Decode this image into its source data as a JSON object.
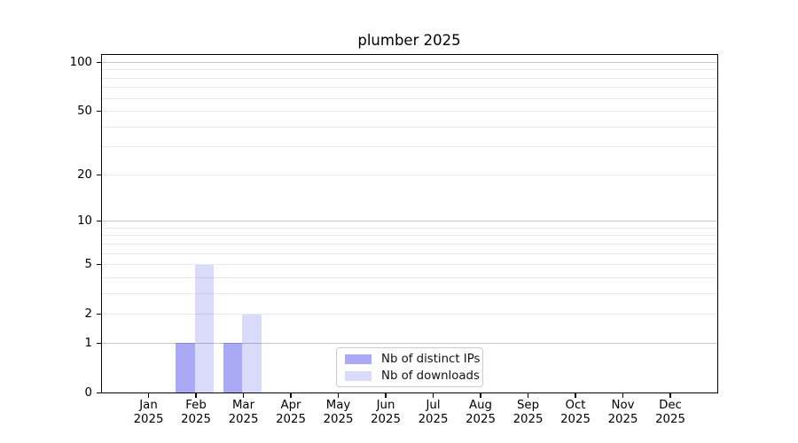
{
  "chart_data": {
    "type": "bar",
    "title": "plumber 2025",
    "categories": [
      "Jan 2025",
      "Feb 2025",
      "Mar 2025",
      "Apr 2025",
      "May 2025",
      "Jun 2025",
      "Jul 2025",
      "Aug 2025",
      "Sep 2025",
      "Oct 2025",
      "Nov 2025",
      "Dec 2025"
    ],
    "series": [
      {
        "name": "Nb of distinct IPs",
        "color": "rgba(10,10,230,0.35)",
        "values": [
          0,
          1,
          1,
          0,
          0,
          0,
          0,
          0,
          0,
          0,
          0,
          0
        ]
      },
      {
        "name": "Nb of downloads",
        "color": "rgba(10,10,230,0.15)",
        "values": [
          0,
          5,
          2,
          0,
          0,
          0,
          0,
          0,
          0,
          0,
          0,
          0
        ]
      }
    ],
    "xlabel": "",
    "ylabel": "",
    "yscale": "log1p",
    "ylim": [
      0,
      113
    ],
    "yticks_labeled": [
      0,
      1,
      2,
      5,
      10,
      20,
      50,
      100
    ],
    "yticks_decade": [
      1,
      10,
      100
    ],
    "yticks_minor": [
      2,
      3,
      4,
      5,
      6,
      7,
      8,
      9,
      20,
      30,
      40,
      50,
      60,
      70,
      80,
      90
    ],
    "grid": true,
    "legend_position": "lower center"
  },
  "colors": {
    "background": "#ffffff",
    "spine": "#000000",
    "text": "#000000",
    "decade_gridline": "#c6c6c6",
    "minor_gridline": "#e9e9e9",
    "bar_distinct_ips": "#a9a9f5",
    "bar_downloads": "#dbdbf8"
  }
}
